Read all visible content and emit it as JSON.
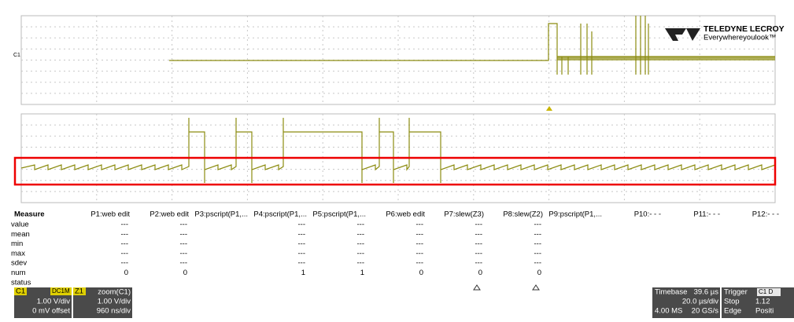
{
  "logo": {
    "brand": "TELEDYNE LECROY",
    "tagline": "Everywhereyoulook™"
  },
  "measure": {
    "header": [
      "Measure",
      "P1:web edit",
      "P2:web edit",
      "P3:pscript(P1,...",
      "P4:pscript(P1,...",
      "P5:pscript(P1,...",
      "P6:web edit",
      "P7:slew(Z3)",
      "P8:slew(Z2)",
      "P9:pscript(P1,...",
      "P10:- - -",
      "P11:- - -",
      "P12:- - -"
    ],
    "rows": [
      {
        "label": "value",
        "cells": [
          "---",
          "---",
          null,
          "---",
          "---",
          "---",
          "---",
          "---",
          null,
          null,
          null,
          null
        ]
      },
      {
        "label": "mean",
        "cells": [
          "---",
          "---",
          null,
          "---",
          "---",
          "---",
          "---",
          "---",
          null,
          null,
          null,
          null
        ]
      },
      {
        "label": "min",
        "cells": [
          "---",
          "---",
          null,
          "---",
          "---",
          "---",
          "---",
          "---",
          null,
          null,
          null,
          null
        ]
      },
      {
        "label": "max",
        "cells": [
          "---",
          "---",
          null,
          "---",
          "---",
          "---",
          "---",
          "---",
          null,
          null,
          null,
          null
        ]
      },
      {
        "label": "sdev",
        "cells": [
          "---",
          "---",
          null,
          "---",
          "---",
          "---",
          "---",
          "---",
          null,
          null,
          null,
          null
        ]
      },
      {
        "label": "num",
        "cells": [
          0,
          0,
          null,
          1,
          1,
          0,
          0,
          0,
          null,
          null,
          null,
          null
        ]
      },
      {
        "label": "status",
        "cells": [
          null,
          null,
          null,
          null,
          null,
          null,
          null,
          null,
          null,
          null,
          null,
          null
        ]
      }
    ]
  },
  "channels": [
    {
      "name": "C1",
      "coupling": "DC1M",
      "scale": "1.00 V/div",
      "offset": "0 mV offset"
    },
    {
      "name": "Z1",
      "source": "zoom(C1)",
      "scale": "1.00 V/div",
      "timebase": "960 ns/div"
    }
  ],
  "timebase": {
    "title": "Timebase",
    "delay": "39.6 µs",
    "scale": "20.0 µs/div",
    "samples": "4.00 MS",
    "rate": "20 GS/s"
  },
  "trigger": {
    "title": "Trigger",
    "source": "C1 D",
    "mode": "Stop",
    "level": "1.12",
    "type": "Edge",
    "slope": "Positi"
  }
}
